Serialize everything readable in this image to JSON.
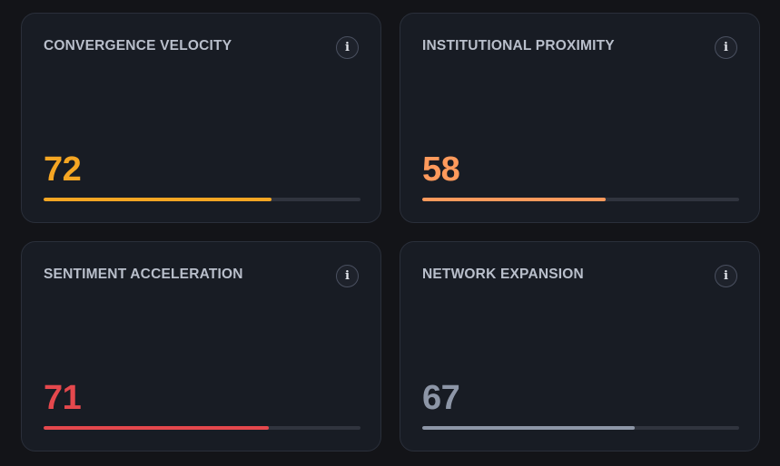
{
  "cards": [
    {
      "title": "CONVERGENCE VELOCITY",
      "value": "72",
      "progress": 0.72,
      "color": "#f5a623",
      "info_icon": "info-icon"
    },
    {
      "title": "INSTITUTIONAL PROXIMITY",
      "value": "58",
      "progress": 0.58,
      "color": "#ff9a5c",
      "info_icon": "info-icon"
    },
    {
      "title": "SENTIMENT ACCELERATION",
      "value": "71",
      "progress": 0.71,
      "color": "#e5484d",
      "info_icon": "info-icon"
    },
    {
      "title": "NETWORK EXPANSION",
      "value": "67",
      "progress": 0.67,
      "color": "#8d96a7",
      "info_icon": "info-icon"
    }
  ],
  "info_glyph": "i"
}
